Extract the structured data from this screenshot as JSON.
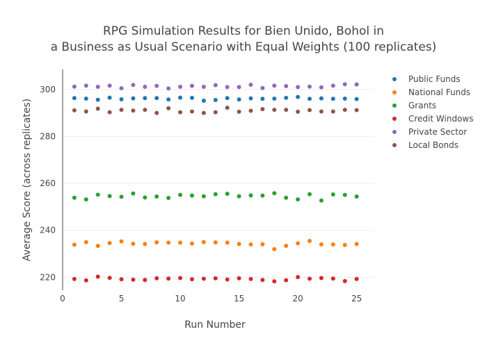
{
  "chart_data": {
    "type": "scatter",
    "title_line1": "RPG Simulation Results for Bien Unido, Bohol in",
    "title_line2": "a Business as Usual Scenario with Equal Weights (100 replicates)",
    "xlabel": "Run Number",
    "ylabel": "Average Score (across replicates)",
    "xlim": [
      0,
      26.5
    ],
    "ylim": [
      214.5,
      308.5
    ],
    "x_ticks": [
      0,
      5,
      10,
      15,
      20,
      25
    ],
    "y_ticks": [
      220,
      240,
      260,
      280,
      300
    ],
    "grid": "horizontal",
    "legend_position": "top-right",
    "x": [
      1,
      2,
      3,
      4,
      5,
      6,
      7,
      8,
      9,
      10,
      11,
      12,
      13,
      14,
      15,
      16,
      17,
      18,
      19,
      20,
      21,
      22,
      23,
      24,
      25
    ],
    "series": [
      {
        "name": "Public Funds",
        "color": "#1f77b4",
        "values": [
          296.3,
          296.1,
          295.6,
          296.5,
          295.8,
          296.2,
          296.3,
          296.3,
          295.7,
          296.5,
          296.4,
          295.2,
          295.5,
          296.3,
          295.7,
          296.2,
          296.0,
          296.1,
          296.4,
          296.8,
          296.0,
          296.2,
          296.0,
          296.1,
          295.9
        ]
      },
      {
        "name": "National Funds",
        "color": "#ff7f0e",
        "values": [
          233.9,
          235.0,
          233.4,
          234.6,
          235.3,
          234.3,
          234.2,
          234.9,
          234.8,
          234.8,
          234.4,
          235.0,
          234.9,
          234.8,
          234.2,
          234.0,
          234.1,
          232.0,
          233.4,
          234.5,
          235.5,
          234.0,
          234.0,
          233.8,
          234.2
        ]
      },
      {
        "name": "Grants",
        "color": "#2ca02c",
        "values": [
          253.9,
          253.2,
          255.2,
          254.6,
          254.3,
          255.7,
          254.0,
          254.4,
          253.8,
          255.1,
          254.8,
          254.5,
          255.4,
          255.6,
          254.5,
          254.9,
          254.8,
          255.8,
          253.9,
          253.2,
          255.4,
          252.7,
          255.3,
          255.1,
          254.4
        ]
      },
      {
        "name": "Credit Windows",
        "color": "#d62728",
        "values": [
          219.3,
          218.7,
          220.3,
          219.8,
          219.2,
          219.0,
          218.9,
          219.6,
          219.5,
          219.7,
          219.2,
          219.4,
          219.6,
          219.1,
          219.6,
          219.3,
          218.9,
          218.3,
          218.8,
          220.1,
          219.4,
          219.7,
          219.5,
          218.4,
          219.3
        ]
      },
      {
        "name": "Private Sector",
        "color": "#9467bd",
        "values": [
          301.2,
          301.6,
          301.1,
          301.6,
          300.5,
          301.9,
          301.1,
          301.5,
          300.4,
          301.1,
          301.5,
          301.1,
          301.8,
          301.0,
          301.0,
          302.0,
          300.6,
          301.6,
          301.4,
          301.0,
          301.2,
          300.9,
          301.6,
          302.2,
          302.1
        ]
      },
      {
        "name": "Local Bonds",
        "color": "#8c564b",
        "values": [
          291.1,
          290.6,
          291.8,
          290.3,
          291.3,
          291.0,
          291.3,
          290.0,
          292.0,
          290.3,
          290.6,
          290.0,
          290.3,
          292.2,
          290.5,
          290.9,
          291.6,
          291.3,
          291.3,
          290.5,
          291.2,
          290.6,
          290.6,
          291.3,
          291.2
        ]
      }
    ]
  },
  "colors": {
    "grid": "#eeeeee",
    "axis_line": "#444444",
    "text": "#444444"
  }
}
